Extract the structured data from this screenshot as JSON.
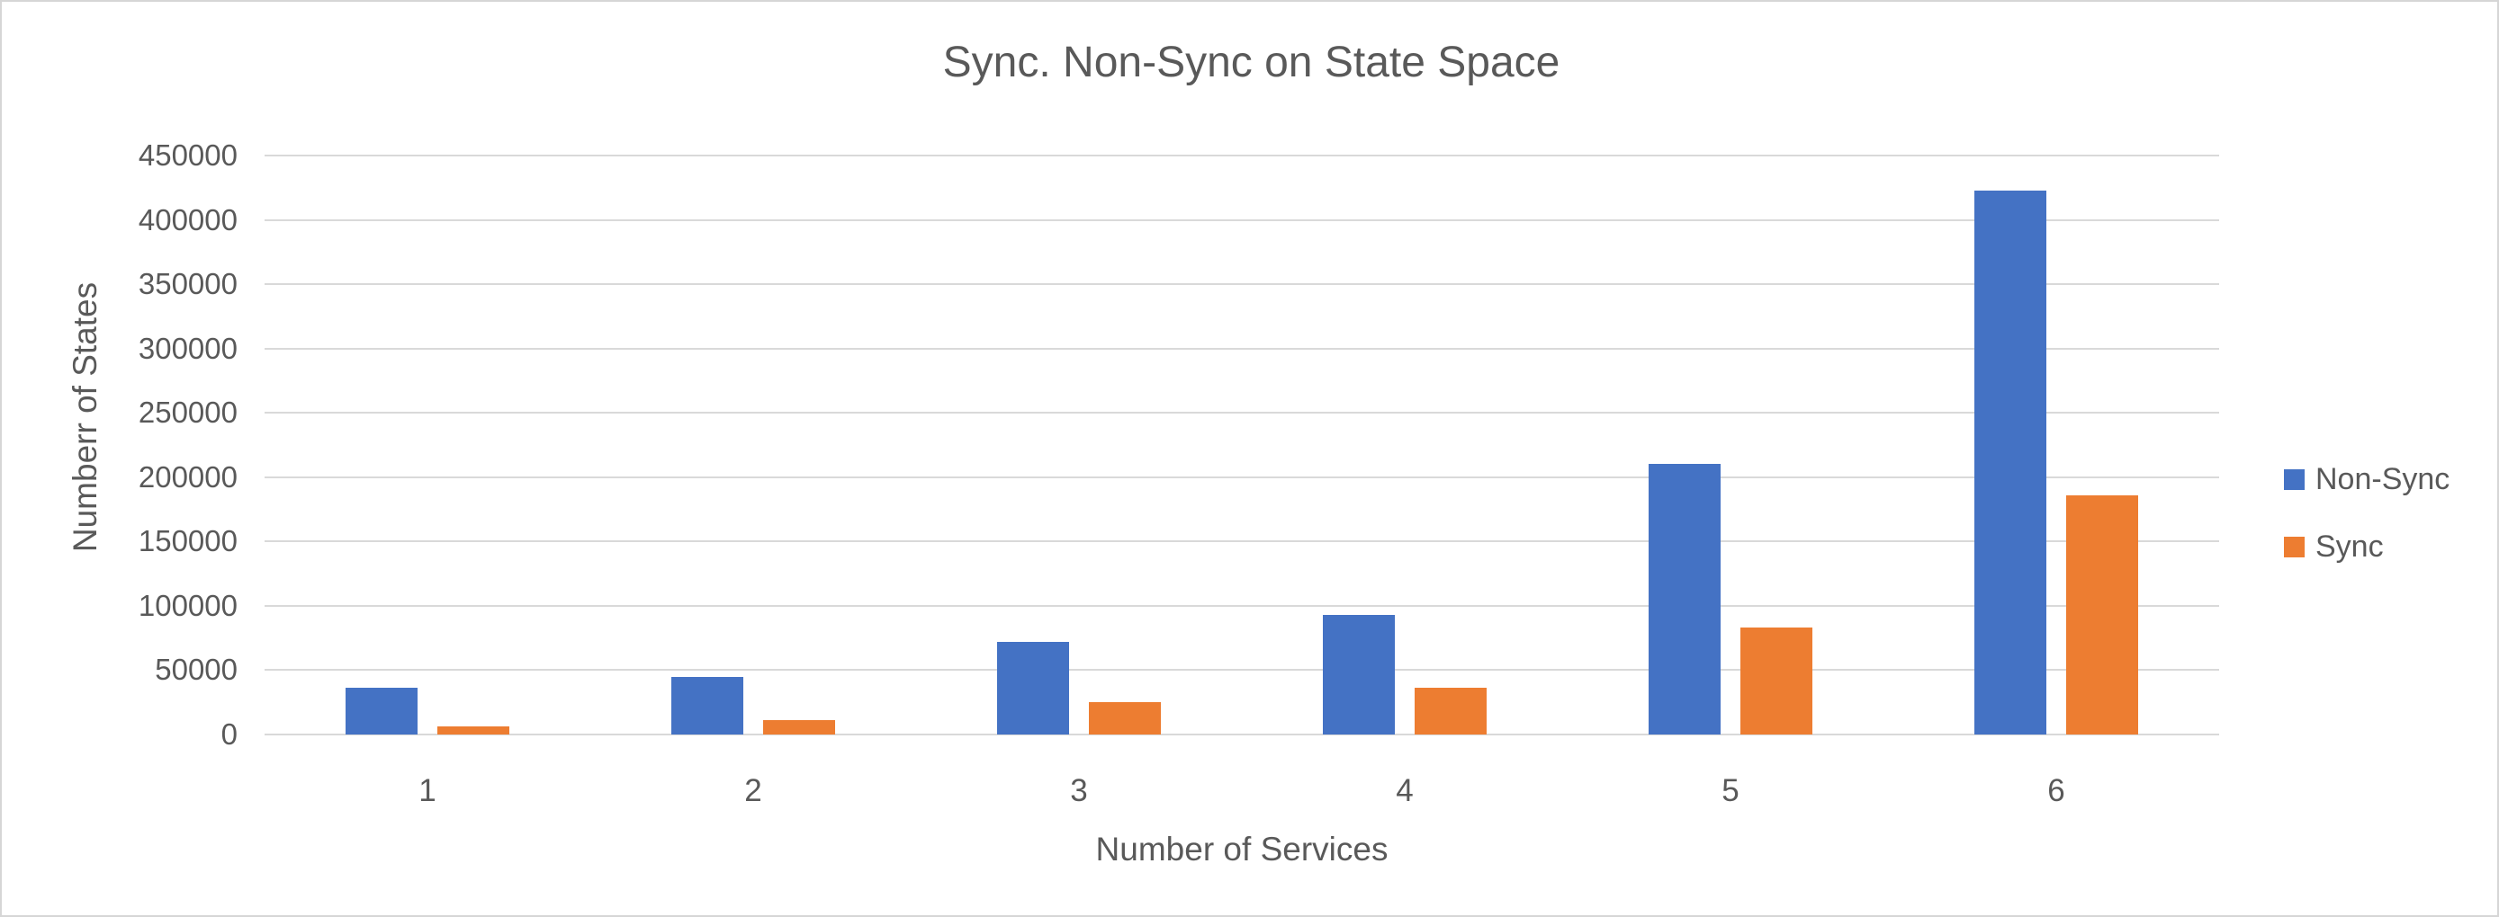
{
  "chart_data": {
    "type": "bar",
    "title": "Sync. Non-Sync on State Space",
    "xlabel": "Number of Services",
    "ylabel": "Numberr of States",
    "categories": [
      "1",
      "2",
      "3",
      "4",
      "5",
      "6"
    ],
    "series": [
      {
        "name": "Non-Sync",
        "color": "#4472C4",
        "values": [
          36000,
          45000,
          72000,
          93000,
          210000,
          423000
        ]
      },
      {
        "name": "Sync",
        "color": "#ED7D31",
        "values": [
          6000,
          11500,
          25000,
          36000,
          83000,
          186000
        ]
      }
    ],
    "ylim": [
      0,
      450000
    ],
    "ytick_step": 50000,
    "ytick_labels": [
      "0",
      "50000",
      "100000",
      "150000",
      "200000",
      "250000",
      "300000",
      "350000",
      "400000",
      "450000"
    ],
    "grid": true,
    "legend_position": "right",
    "colors": {
      "text": "#595959",
      "gridline": "#D9D9D9",
      "background": "#FFFFFF"
    }
  }
}
